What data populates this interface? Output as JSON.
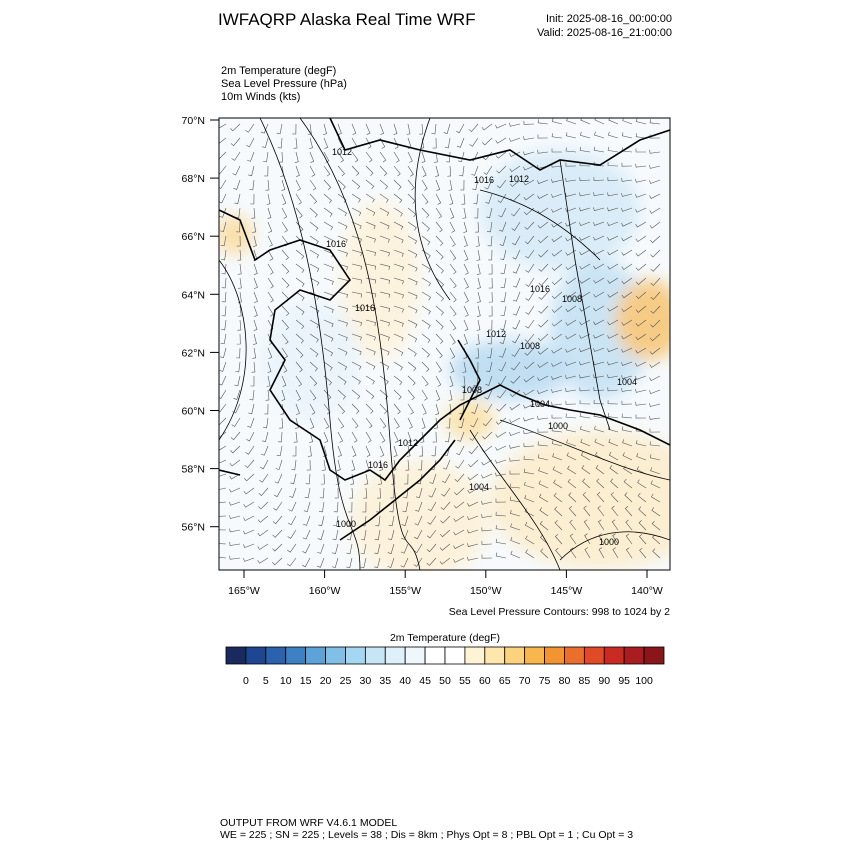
{
  "header": {
    "title": "IWFAQRP Alaska Real Time WRF",
    "init": "Init: 2025-08-16_00:00:00",
    "valid": "Valid: 2025-08-16_21:00:00"
  },
  "fields": [
    "2m Temperature   (degF)",
    "Sea Level Pressure   (hPa)",
    "10m Winds   (kts)"
  ],
  "map": {
    "lat_labels": [
      "70°N",
      "68°N",
      "66°N",
      "64°N",
      "62°N",
      "60°N",
      "58°N",
      "56°N"
    ],
    "lon_labels": [
      "165°W",
      "160°W",
      "155°W",
      "150°W",
      "145°W",
      "140°W"
    ],
    "contour_labels": [
      "1012",
      "1016",
      "1012",
      "1016",
      "1016",
      "1016",
      "1008",
      "1012",
      "1008",
      "1004",
      "1008",
      "1004",
      "1000",
      "1012",
      "1016",
      "1004",
      "1000",
      "1000"
    ],
    "contour_note": "Sea Level Pressure Contours: 998 to 1024 by 2"
  },
  "colorbar": {
    "title": "2m Temperature  (degF)",
    "labels": [
      0,
      5,
      10,
      15,
      20,
      25,
      30,
      35,
      40,
      45,
      50,
      55,
      60,
      65,
      70,
      75,
      80,
      85,
      90,
      95,
      100
    ],
    "colors": [
      "#1a2a5e",
      "#1f4690",
      "#2a62ad",
      "#3d80c4",
      "#5ea3d7",
      "#82bfe6",
      "#a6d7f2",
      "#c6e6f6",
      "#def0f9",
      "#eef7fc",
      "#ffffff",
      "#ffffff",
      "#fff3d6",
      "#fde7ad",
      "#fbd37f",
      "#f9b54e",
      "#f39432",
      "#ea6f2c",
      "#e04a26",
      "#c92b23",
      "#a91c1f",
      "#8a161a"
    ]
  },
  "footer": {
    "line1": "OUTPUT FROM WRF V4.6.1 MODEL",
    "line2": "WE = 225 ; SN = 225 ; Levels = 38 ; Dis = 8km ; Phys Opt = 8 ; PBL Opt = 1 ; Cu Opt = 3"
  }
}
